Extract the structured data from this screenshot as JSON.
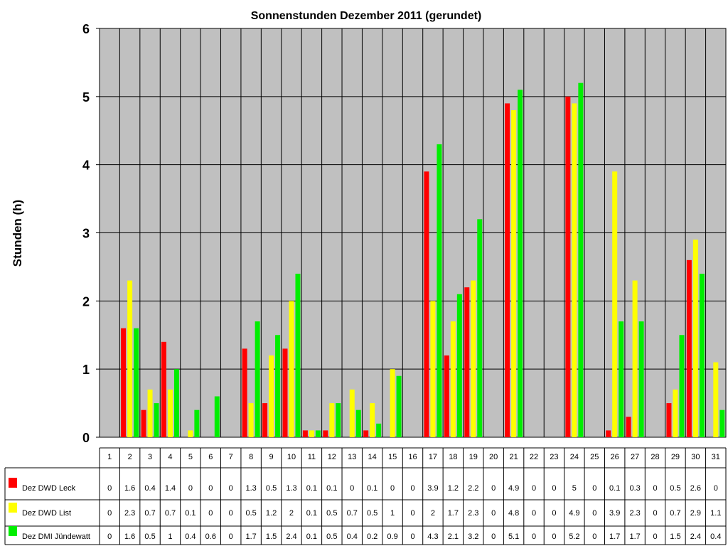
{
  "chart_data": {
    "type": "bar",
    "title": "Sonnenstunden Dezember 2011 (gerundet)",
    "xlabel": "",
    "ylabel": "Stunden (h)",
    "ylim": [
      0,
      6
    ],
    "yticks": [
      "0",
      "1",
      "2",
      "3",
      "4",
      "5",
      "6"
    ],
    "grid": true,
    "legend_placement": "left of data table",
    "categories": [
      "1",
      "2",
      "3",
      "4",
      "5",
      "6",
      "7",
      "8",
      "9",
      "10",
      "11",
      "12",
      "13",
      "14",
      "15",
      "16",
      "17",
      "18",
      "19",
      "20",
      "21",
      "22",
      "23",
      "24",
      "25",
      "26",
      "27",
      "28",
      "29",
      "30",
      "31"
    ],
    "series": [
      {
        "name": "Dez DWD Leck",
        "color": "#ff0000",
        "values": [
          0,
          1.6,
          0.4,
          1.4,
          0,
          0,
          0,
          1.3,
          0.5,
          1.3,
          0.1,
          0.1,
          0,
          0.1,
          0,
          0,
          3.9,
          1.2,
          2.2,
          0,
          4.9,
          0,
          0,
          5,
          0,
          0.1,
          0.3,
          0,
          0.5,
          2.6,
          0
        ],
        "labels": [
          "0",
          "1.6",
          "0.4",
          "1.4",
          "0",
          "0",
          "0",
          "1.3",
          "0.5",
          "1.3",
          "0.1",
          "0.1",
          "0",
          "0.1",
          "0",
          "0",
          "3.9",
          "1.2",
          "2.2",
          "0",
          "4.9",
          "0",
          "0",
          "5",
          "0",
          "0.1",
          "0.3",
          "0",
          "0.5",
          "2.6",
          "0"
        ]
      },
      {
        "name": "Dez DWD List",
        "color": "#ffff00",
        "values": [
          0,
          2.3,
          0.7,
          0.7,
          0.1,
          0,
          0,
          0.5,
          1.2,
          2,
          0.1,
          0.5,
          0.7,
          0.5,
          1,
          0,
          2,
          1.7,
          2.3,
          0,
          4.8,
          0,
          0,
          4.9,
          0,
          3.9,
          2.3,
          0,
          0.7,
          2.9,
          1.1
        ],
        "labels": [
          "0",
          "2.3",
          "0.7",
          "0.7",
          "0.1",
          "0",
          "0",
          "0.5",
          "1.2",
          "2",
          "0.1",
          "0.5",
          "0.7",
          "0.5",
          "1",
          "0",
          "2",
          "1.7",
          "2.3",
          "0",
          "4.8",
          "0",
          "0",
          "4.9",
          "0",
          "3.9",
          "2.3",
          "0",
          "0.7",
          "2.9",
          "1.1"
        ]
      },
      {
        "name": "Dez DMI Jündewatt",
        "color": "#00ee00",
        "values": [
          0,
          1.6,
          0.5,
          1,
          0.4,
          0.6,
          0,
          1.7,
          1.5,
          2.4,
          0.1,
          0.5,
          0.4,
          0.2,
          0.9,
          0,
          4.3,
          2.1,
          3.2,
          0,
          5.1,
          0,
          0,
          5.2,
          0,
          1.7,
          1.7,
          0,
          1.5,
          2.4,
          0.4
        ],
        "labels": [
          "0",
          "1.6",
          "0.5",
          "1",
          "0.4",
          "0.6",
          "0",
          "1.7",
          "1.5",
          "2.4",
          "0.1",
          "0.5",
          "0.4",
          "0.2",
          "0.9",
          "0",
          "4.3",
          "2.1",
          "3.2",
          "0",
          "5.1",
          "0",
          "0",
          "5.2",
          "0",
          "1.7",
          "1.7",
          "0",
          "1.5",
          "2.4",
          "0.4"
        ]
      }
    ]
  }
}
